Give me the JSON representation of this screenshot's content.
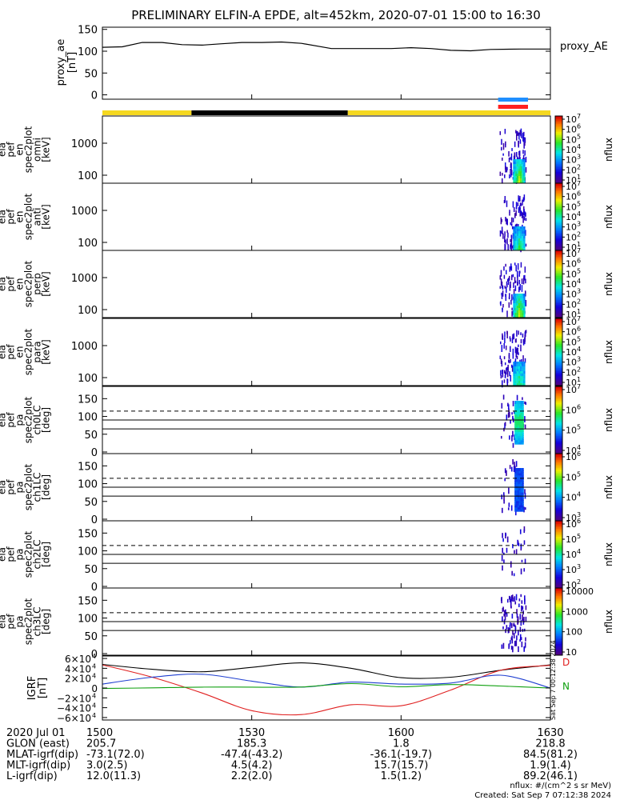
{
  "title": "PRELIMINARY ELFIN-A EPDE, alt=452km, 2020-07-01 15:00 to 16:30",
  "proxy_ae": {
    "ylabel": [
      "proxy_ae",
      "[nT]"
    ],
    "legend": "proxy_AE",
    "ylim": [
      -10,
      155
    ],
    "ticks": [
      "0",
      "50",
      "100",
      "150"
    ],
    "series": [
      {
        "t": 0,
        "v": 109
      },
      {
        "t": 4,
        "v": 110
      },
      {
        "t": 8,
        "v": 120
      },
      {
        "t": 12,
        "v": 120
      },
      {
        "t": 16,
        "v": 115
      },
      {
        "t": 20,
        "v": 114
      },
      {
        "t": 24,
        "v": 117
      },
      {
        "t": 28,
        "v": 120
      },
      {
        "t": 32,
        "v": 120
      },
      {
        "t": 36,
        "v": 121
      },
      {
        "t": 40,
        "v": 118
      },
      {
        "t": 46,
        "v": 106
      },
      {
        "t": 52,
        "v": 106
      },
      {
        "t": 58,
        "v": 106
      },
      {
        "t": 62,
        "v": 108
      },
      {
        "t": 66,
        "v": 106
      },
      {
        "t": 70,
        "v": 102
      },
      {
        "t": 74,
        "v": 101
      },
      {
        "t": 78,
        "v": 104
      },
      {
        "t": 84,
        "v": 105
      },
      {
        "t": 90,
        "v": 105
      }
    ]
  },
  "indicator_bars": {
    "day_night_colors": [
      "#f5d820",
      "#000000",
      "#f5d820"
    ],
    "day_night_breaks": [
      0,
      17.9,
      49.3,
      90
    ],
    "science_bars": [
      {
        "color": "#1f8fff",
        "t0": 79.5,
        "t1": 85.5
      },
      {
        "color": "#ff2020",
        "t0": 79.5,
        "t1": 85.5
      }
    ]
  },
  "spectrogram_panels": [
    {
      "id": "omni",
      "ylabel": [
        "ela",
        "pef",
        "en",
        "spec2plot",
        "omni",
        "[keV]"
      ],
      "ticks": [
        "100",
        "1000"
      ]
    },
    {
      "id": "anti",
      "ylabel": [
        "ela",
        "pef",
        "en",
        "spec2plot",
        "anti",
        "[keV]"
      ],
      "ticks": [
        "100",
        "1000"
      ]
    },
    {
      "id": "perp",
      "ylabel": [
        "ela",
        "pef",
        "en",
        "spec2plot",
        "perp",
        "[keV]"
      ],
      "ticks": [
        "100",
        "1000"
      ]
    },
    {
      "id": "para",
      "ylabel": [
        "ela",
        "pef",
        "en",
        "spec2plot",
        "para",
        "[keV]"
      ],
      "ticks": [
        "100",
        "1000"
      ]
    }
  ],
  "pitch_panels": [
    {
      "id": "ch0LC",
      "ylabel": [
        "ela",
        "pef",
        "pa",
        "spec2plot",
        "ch0LC",
        "[deg]"
      ],
      "ticks": [
        "0",
        "50",
        "100",
        "150"
      ]
    },
    {
      "id": "ch1LC",
      "ylabel": [
        "ela",
        "pef",
        "pa",
        "spec2plot",
        "ch1LC",
        "[deg]"
      ],
      "ticks": [
        "0",
        "50",
        "100",
        "150"
      ]
    },
    {
      "id": "ch2LC",
      "ylabel": [
        "ela",
        "pef",
        "pa",
        "spec2plot",
        "ch2LC",
        "[deg]"
      ],
      "ticks": [
        "0",
        "50",
        "100",
        "150"
      ]
    },
    {
      "id": "ch3LC",
      "ylabel": [
        "ela",
        "pef",
        "pa",
        "spec2plot",
        "ch3LC",
        "[deg]"
      ],
      "ticks": [
        "0",
        "50",
        "100",
        "150"
      ]
    }
  ],
  "colorbars": [
    {
      "label": "nflux",
      "ticks": [
        "10",
        "10",
        "10",
        "10",
        "10",
        "10",
        "10"
      ],
      "exps": [
        "1",
        "2",
        "3",
        "4",
        "5",
        "6",
        "7"
      ]
    },
    {
      "label": "nflux",
      "ticks": [
        "10",
        "10",
        "10",
        "10",
        "10",
        "10",
        "10"
      ],
      "exps": [
        "1",
        "2",
        "3",
        "4",
        "5",
        "6",
        "7"
      ]
    },
    {
      "label": "nflux",
      "ticks": [
        "10",
        "10",
        "10",
        "10",
        "10",
        "10",
        "10"
      ],
      "exps": [
        "1",
        "2",
        "3",
        "4",
        "5",
        "6",
        "7"
      ]
    },
    {
      "label": "nflux",
      "ticks": [
        "10",
        "10",
        "10",
        "10",
        "10",
        "10",
        "10"
      ],
      "exps": [
        "1",
        "2",
        "3",
        "4",
        "5",
        "6",
        "7"
      ]
    },
    {
      "label": "nflux",
      "ticks": [
        "10",
        "10",
        "10",
        "10"
      ],
      "exps": [
        "4",
        "5",
        "6",
        "7"
      ]
    },
    {
      "label": "nflux",
      "ticks": [
        "10",
        "10",
        "10",
        "10"
      ],
      "exps": [
        "3",
        "4",
        "5",
        "6"
      ]
    },
    {
      "label": "nflux",
      "ticks": [
        "10",
        "10",
        "10",
        "10",
        "10"
      ],
      "exps": [
        "2",
        "3",
        "4",
        "5",
        "6"
      ]
    },
    {
      "label": "nflux",
      "ticks": [
        "10",
        "100",
        "1000",
        "10000"
      ],
      "exps": [
        "",
        "",
        "",
        ""
      ]
    }
  ],
  "igrf": {
    "ylabel": [
      "IGRF",
      "[nT]"
    ],
    "ylim": [
      -65000,
      65000
    ],
    "ticks": [
      "6×10",
      "4×10",
      "2×10",
      "0",
      "−2×10",
      "−4×10",
      "−6×10"
    ],
    "tick_exps": [
      "4",
      "4",
      "4",
      "",
      "4",
      "4",
      "4"
    ],
    "tick_values": [
      60000,
      40000,
      20000,
      0,
      -20000,
      -40000,
      -60000
    ],
    "legend": [
      "D",
      "N"
    ],
    "created_vertical": "Sat Sep  7 00:12:38 2024",
    "series": [
      {
        "name": "",
        "color": "#000000",
        "t": [
          0,
          10,
          20,
          30,
          40,
          50,
          60,
          70,
          80,
          90
        ],
        "v": [
          48000,
          38000,
          33000,
          42000,
          51000,
          40000,
          21000,
          22000,
          36000,
          47000
        ]
      },
      {
        "name": "",
        "color": "#e02020",
        "t": [
          0,
          10,
          20,
          30,
          40,
          50,
          60,
          70,
          80,
          90
        ],
        "v": [
          47000,
          22000,
          -10000,
          -46000,
          -54000,
          -34000,
          -36000,
          -4000,
          36000,
          46000
        ]
      },
      {
        "name": "",
        "color": "#1f3fd0",
        "t": [
          0,
          10,
          20,
          30,
          40,
          50,
          60,
          70,
          80,
          90
        ],
        "v": [
          8000,
          22000,
          28000,
          14000,
          2000,
          12000,
          8000,
          10000,
          26000,
          0
        ]
      },
      {
        "name": "",
        "color": "#10a010",
        "t": [
          0,
          10,
          20,
          30,
          40,
          50,
          60,
          70,
          80,
          90
        ],
        "v": [
          -1000,
          300,
          1800,
          1800,
          2000,
          9000,
          2500,
          7000,
          4000,
          -200
        ]
      }
    ]
  },
  "xaxis": {
    "ticks": [
      "1500",
      "1530",
      "1600",
      "1630"
    ],
    "rows": [
      {
        "label": "2020 Jul 01",
        "values": [
          "1500",
          "1530",
          "1600",
          "1630"
        ]
      },
      {
        "label": "GLON (east)",
        "values": [
          "205.7",
          "185.3",
          "1.8",
          "218.8"
        ]
      },
      {
        "label": "MLAT-igrf(dip)",
        "values": [
          "-73.1(72.0)",
          "-47.4(-43.2)",
          "-36.1(-19.7)",
          "84.5(81.2)"
        ]
      },
      {
        "label": "MLT-igrf(dip)",
        "values": [
          "3.0(2.5)",
          "4.5(4.2)",
          "15.7(15.7)",
          "1.9(1.4)"
        ]
      },
      {
        "label": "L-igrf(dip)",
        "values": [
          "12.0(11.3)",
          "2.2(2.0)",
          "1.5(1.2)",
          "89.2(46.1)"
        ]
      }
    ]
  },
  "footer": {
    "units": "nflux: #/(cm^2 s sr MeV)",
    "created": "Created: Sat Sep  7 07:12:38 2024"
  },
  "chart_data": [
    {
      "type": "line",
      "title": "PRELIMINARY ELFIN-A EPDE, alt=452km, 2020-07-01 15:00 to 16:30",
      "xlabel": "",
      "ylabel": "proxy_ae [nT]",
      "x_ticks": [
        "1500",
        "1530",
        "1600",
        "1630"
      ],
      "ylim": [
        -10,
        155
      ],
      "series": [
        {
          "name": "proxy_AE",
          "x_minutes_after_1500": [
            0,
            8,
            20,
            36,
            46,
            70,
            90
          ],
          "values": [
            109,
            120,
            114,
            121,
            106,
            102,
            105
          ]
        }
      ]
    },
    {
      "type": "heatmap",
      "ylabel": "ela pef en spec2plot [keV]",
      "panels": [
        "omni",
        "anti",
        "perp",
        "para"
      ],
      "yscale": "log",
      "colorbar": "nflux 10^1 – 10^7",
      "active_interval": "≈16:19 – 16:25"
    },
    {
      "type": "heatmap",
      "ylabel": "ela pef pa spec2plot [deg]",
      "panels": [
        "ch0LC",
        "ch1LC",
        "ch2LC",
        "ch3LC"
      ],
      "ylim": [
        0,
        180
      ],
      "reference_lines_deg": [
        65,
        90,
        115
      ],
      "active_interval": "≈16:19 – 16:25"
    },
    {
      "type": "line",
      "ylabel": "IGRF [nT]",
      "ylim": [
        -65000,
        65000
      ],
      "series_colors": [
        "#000000",
        "#e02020",
        "#1f3fd0",
        "#10a010"
      ]
    }
  ]
}
